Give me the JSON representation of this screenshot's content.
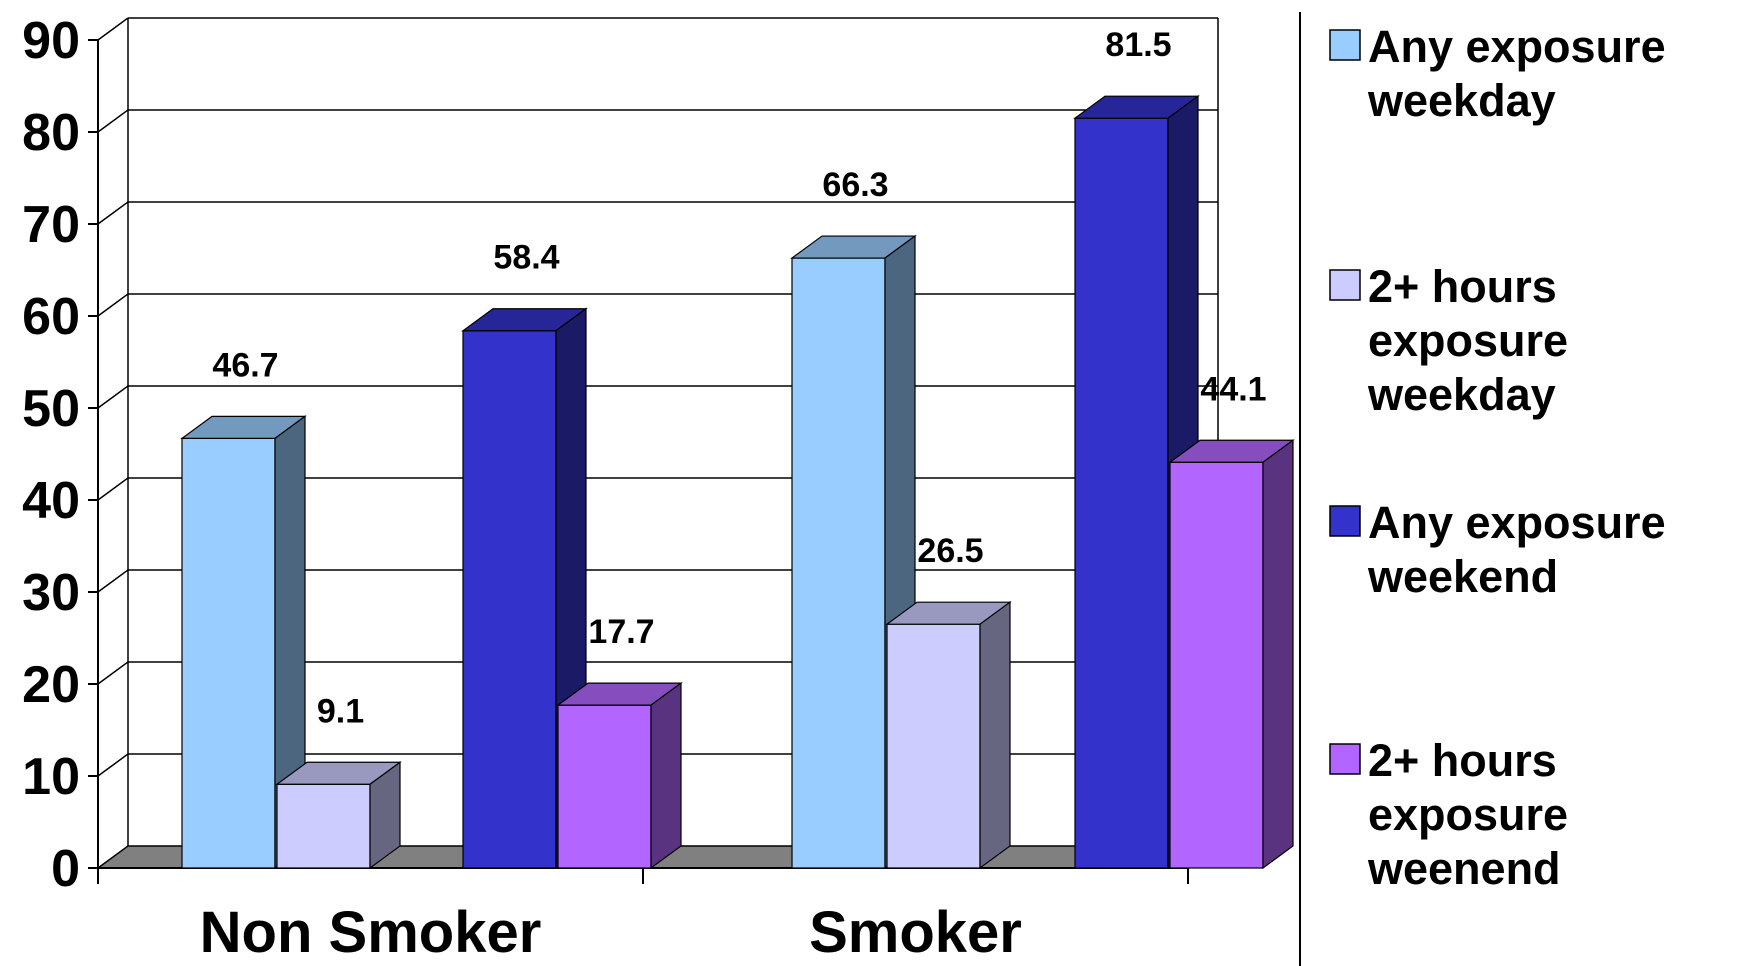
{
  "chart_data": {
    "type": "bar",
    "categories": [
      "Non Smoker",
      "Smoker"
    ],
    "series": [
      {
        "name": "Any exposure weekday",
        "legend_lines": [
          "Any exposure",
          "weekday"
        ],
        "values": [
          46.7,
          66.3
        ],
        "color": "#99CCFF",
        "top_color": "#7399BF",
        "side_color": "#4D6680"
      },
      {
        "name": "2+ hours exposure weekday",
        "legend_lines": [
          "2+ hours",
          "exposure",
          "weekday"
        ],
        "values": [
          9.1,
          26.5
        ],
        "color": "#CCCCFF",
        "top_color": "#9999BF",
        "side_color": "#666680"
      },
      {
        "name": "Any exposure weekend",
        "legend_lines": [
          "Any exposure",
          "weekend"
        ],
        "values": [
          58.4,
          81.5
        ],
        "color": "#3333CC",
        "top_color": "#262699",
        "side_color": "#1A1A66"
      },
      {
        "name": "2+ hours exposure weenend",
        "legend_lines": [
          "2+ hours",
          "exposure",
          "weenend"
        ],
        "values": [
          17.7,
          44.1
        ],
        "color": "#B366FF",
        "top_color": "#864DBF",
        "side_color": "#5A3380"
      }
    ],
    "data_labels": [
      [
        "46.7",
        "66.3"
      ],
      [
        "9.1",
        "26.5"
      ],
      [
        "58.4",
        "81.5"
      ],
      [
        "17.7",
        "44.1"
      ]
    ],
    "y_ticks": [
      "0",
      "10",
      "20",
      "30",
      "40",
      "50",
      "60",
      "70",
      "80",
      "90"
    ],
    "ylim": [
      0,
      90
    ],
    "grid": true,
    "legend_position": "right",
    "title": "",
    "xlabel": "",
    "ylabel": ""
  }
}
